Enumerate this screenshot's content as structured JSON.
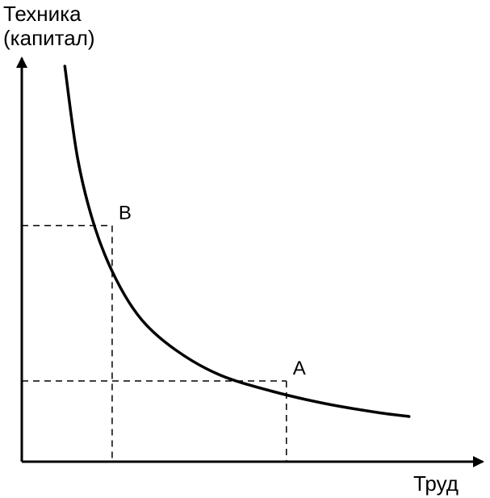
{
  "chart_data": {
    "type": "line",
    "ylabel_lines": [
      "Техника",
      "(капитал)"
    ],
    "xlabel": "Труд",
    "xlim": [
      0,
      10
    ],
    "ylim": [
      0,
      10
    ],
    "grid": false,
    "series": [
      {
        "x": [
          1.0,
          1.3,
          1.7,
          2.2,
          2.8,
          3.6,
          4.6,
          5.8,
          7.0,
          8.2,
          9.0
        ],
        "y": [
          9.8,
          7.5,
          5.8,
          4.5,
          3.5,
          2.75,
          2.15,
          1.75,
          1.45,
          1.23,
          1.12
        ]
      }
    ],
    "points": [
      {
        "label": "B",
        "x": 2.1,
        "y": 5.85
      },
      {
        "label": "A",
        "x": 6.15,
        "y": 2.0
      }
    ],
    "line_color": "#000000"
  }
}
